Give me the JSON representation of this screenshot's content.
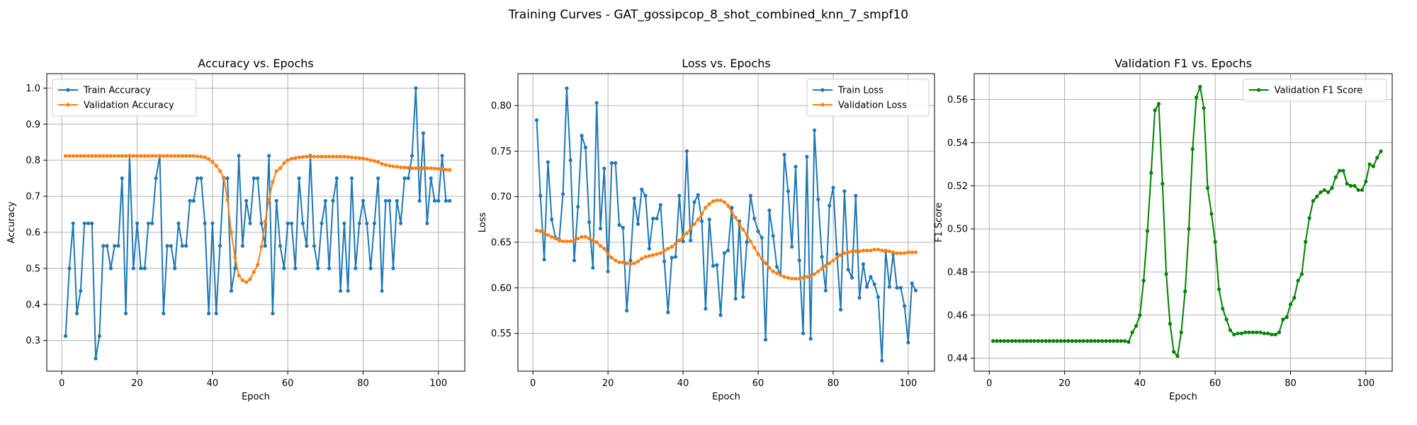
{
  "figure": {
    "suptitle": "Training Curves - GAT_gossipcop_8_shot_combined_knn_7_smpf10"
  },
  "colors": {
    "train": "#1f77b4",
    "validation": "#ff7f0e",
    "f1": "#008000"
  },
  "chart_data": [
    {
      "type": "line",
      "title": "Accuracy vs. Epochs",
      "xlabel": "Epoch",
      "ylabel": "Accuracy",
      "xlim": [
        -4,
        107
      ],
      "ylim": [
        0.215,
        1.04
      ],
      "xticks": [
        0,
        20,
        40,
        60,
        80,
        100
      ],
      "yticks": [
        0.3,
        0.4,
        0.5,
        0.6,
        0.7,
        0.8,
        0.9,
        1.0
      ],
      "ytick_labels": [
        "0.3",
        "0.4",
        "0.5",
        "0.6",
        "0.7",
        "0.8",
        "0.9",
        "1.0"
      ],
      "grid": true,
      "legend_position": "top-left",
      "x_start": 1,
      "series": [
        {
          "name": "Train Accuracy",
          "color": "#1f77b4",
          "values": [
            0.3125,
            0.5,
            0.625,
            0.375,
            0.4375,
            0.625,
            0.625,
            0.625,
            0.25,
            0.3125,
            0.5625,
            0.5625,
            0.5,
            0.5625,
            0.5625,
            0.75,
            0.375,
            0.8125,
            0.5,
            0.625,
            0.5,
            0.5,
            0.625,
            0.625,
            0.75,
            0.8125,
            0.375,
            0.5625,
            0.5625,
            0.5,
            0.625,
            0.5625,
            0.5625,
            0.6875,
            0.6875,
            0.75,
            0.75,
            0.625,
            0.375,
            0.625,
            0.375,
            0.5625,
            0.75,
            0.75,
            0.4375,
            0.5,
            0.8125,
            0.5625,
            0.6875,
            0.625,
            0.75,
            0.75,
            0.625,
            0.5625,
            0.8125,
            0.375,
            0.6875,
            0.5625,
            0.5,
            0.625,
            0.625,
            0.5,
            0.75,
            0.625,
            0.5625,
            0.8125,
            0.5625,
            0.5,
            0.625,
            0.6875,
            0.5,
            0.6875,
            0.75,
            0.4375,
            0.625,
            0.4375,
            0.75,
            0.5,
            0.625,
            0.6875,
            0.625,
            0.5,
            0.625,
            0.75,
            0.4375,
            0.6875,
            0.6875,
            0.5,
            0.6875,
            0.625,
            0.75,
            0.75,
            0.8125,
            1.0,
            0.6875,
            0.875,
            0.625,
            0.75,
            0.6875,
            0.6875,
            0.8125,
            0.6875,
            0.6875
          ]
        },
        {
          "name": "Validation Accuracy",
          "color": "#ff7f0e",
          "values": [
            0.812,
            0.812,
            0.812,
            0.812,
            0.812,
            0.812,
            0.812,
            0.812,
            0.812,
            0.812,
            0.812,
            0.812,
            0.812,
            0.812,
            0.812,
            0.812,
            0.812,
            0.812,
            0.812,
            0.812,
            0.812,
            0.812,
            0.812,
            0.812,
            0.812,
            0.812,
            0.812,
            0.812,
            0.812,
            0.812,
            0.812,
            0.812,
            0.812,
            0.812,
            0.812,
            0.811,
            0.81,
            0.808,
            0.803,
            0.795,
            0.785,
            0.77,
            0.752,
            0.69,
            0.6,
            0.53,
            0.48,
            0.467,
            0.462,
            0.47,
            0.49,
            0.51,
            0.56,
            0.63,
            0.69,
            0.74,
            0.77,
            0.778,
            0.792,
            0.8,
            0.804,
            0.806,
            0.808,
            0.809,
            0.81,
            0.81,
            0.81,
            0.81,
            0.81,
            0.81,
            0.81,
            0.81,
            0.81,
            0.81,
            0.81,
            0.809,
            0.808,
            0.807,
            0.806,
            0.805,
            0.803,
            0.8,
            0.798,
            0.795,
            0.79,
            0.787,
            0.785,
            0.783,
            0.782,
            0.78,
            0.78,
            0.779,
            0.778,
            0.778,
            0.778,
            0.778,
            0.778,
            0.778,
            0.777,
            0.776,
            0.775,
            0.774,
            0.773
          ]
        }
      ]
    },
    {
      "type": "line",
      "title": "Loss vs. Epochs",
      "xlabel": "Epoch",
      "ylabel": "Loss",
      "xlim": [
        -4,
        107
      ],
      "ylim": [
        0.5085,
        0.835
      ],
      "xticks": [
        0,
        20,
        40,
        60,
        80,
        100
      ],
      "yticks": [
        0.55,
        0.6,
        0.65,
        0.7,
        0.75,
        0.8
      ],
      "ytick_labels": [
        "0.55",
        "0.60",
        "0.65",
        "0.70",
        "0.75",
        "0.80"
      ],
      "grid": true,
      "legend_position": "top-right",
      "x_start": 1,
      "series": [
        {
          "name": "Train Loss",
          "color": "#1f77b4",
          "values": [
            0.784,
            0.701,
            0.631,
            0.738,
            0.675,
            0.655,
            0.653,
            0.703,
            0.819,
            0.74,
            0.63,
            0.689,
            0.767,
            0.754,
            0.672,
            0.622,
            0.803,
            0.665,
            0.731,
            0.618,
            0.737,
            0.737,
            0.669,
            0.666,
            0.575,
            0.63,
            0.698,
            0.67,
            0.708,
            0.701,
            0.643,
            0.676,
            0.676,
            0.691,
            0.629,
            0.573,
            0.633,
            0.634,
            0.701,
            0.651,
            0.75,
            0.652,
            0.694,
            0.702,
            0.673,
            0.577,
            0.675,
            0.624,
            0.625,
            0.57,
            0.638,
            0.641,
            0.688,
            0.588,
            0.673,
            0.59,
            0.65,
            0.701,
            0.676,
            0.662,
            0.655,
            0.543,
            0.685,
            0.657,
            0.623,
            0.614,
            0.746,
            0.706,
            0.645,
            0.733,
            0.63,
            0.55,
            0.744,
            0.544,
            0.773,
            0.697,
            0.634,
            0.597,
            0.69,
            0.71,
            0.637,
            0.576,
            0.706,
            0.62,
            0.611,
            0.701,
            0.589,
            0.626,
            0.601,
            0.612,
            0.604,
            0.59,
            0.52,
            0.64,
            0.601,
            0.637,
            0.6,
            0.6,
            0.58,
            0.54,
            0.605,
            0.597
          ]
        },
        {
          "name": "Validation Loss",
          "color": "#ff7f0e",
          "values": [
            0.663,
            0.662,
            0.66,
            0.658,
            0.656,
            0.654,
            0.652,
            0.651,
            0.651,
            0.651,
            0.652,
            0.654,
            0.656,
            0.656,
            0.654,
            0.652,
            0.65,
            0.646,
            0.643,
            0.637,
            0.633,
            0.63,
            0.628,
            0.628,
            0.627,
            0.626,
            0.627,
            0.629,
            0.632,
            0.634,
            0.635,
            0.636,
            0.637,
            0.638,
            0.641,
            0.643,
            0.645,
            0.648,
            0.652,
            0.656,
            0.66,
            0.665,
            0.67,
            0.675,
            0.681,
            0.688,
            0.692,
            0.695,
            0.696,
            0.696,
            0.694,
            0.69,
            0.683,
            0.677,
            0.67,
            0.664,
            0.658,
            0.651,
            0.644,
            0.637,
            0.632,
            0.627,
            0.622,
            0.618,
            0.616,
            0.614,
            0.612,
            0.611,
            0.61,
            0.61,
            0.61,
            0.611,
            0.612,
            0.613,
            0.615,
            0.618,
            0.621,
            0.624,
            0.627,
            0.63,
            0.633,
            0.636,
            0.638,
            0.639,
            0.64,
            0.64,
            0.64,
            0.641,
            0.641,
            0.641,
            0.642,
            0.642,
            0.641,
            0.641,
            0.64,
            0.639,
            0.638,
            0.638,
            0.638,
            0.639,
            0.639,
            0.639
          ]
        }
      ]
    },
    {
      "type": "line",
      "title": "Validation F1 vs. Epochs",
      "xlabel": "Epoch",
      "ylabel": "F1 Score",
      "xlim": [
        -4,
        107
      ],
      "ylim": [
        0.434,
        0.572
      ],
      "xticks": [
        0,
        20,
        40,
        60,
        80,
        100
      ],
      "yticks": [
        0.44,
        0.46,
        0.48,
        0.5,
        0.52,
        0.54,
        0.56
      ],
      "ytick_labels": [
        "0.44",
        "0.46",
        "0.48",
        "0.50",
        "0.52",
        "0.54",
        "0.56"
      ],
      "grid": true,
      "legend_position": "top-right",
      "x_start": 1,
      "series": [
        {
          "name": "Validation F1 Score",
          "color": "#008000",
          "values": [
            0.448,
            0.448,
            0.448,
            0.448,
            0.448,
            0.448,
            0.448,
            0.448,
            0.448,
            0.448,
            0.448,
            0.448,
            0.448,
            0.448,
            0.448,
            0.448,
            0.448,
            0.448,
            0.448,
            0.448,
            0.448,
            0.448,
            0.448,
            0.448,
            0.448,
            0.448,
            0.448,
            0.448,
            0.448,
            0.448,
            0.448,
            0.448,
            0.448,
            0.448,
            0.448,
            0.448,
            0.4475,
            0.452,
            0.455,
            0.46,
            0.476,
            0.499,
            0.526,
            0.555,
            0.558,
            0.521,
            0.479,
            0.456,
            0.443,
            0.441,
            0.452,
            0.471,
            0.5,
            0.537,
            0.561,
            0.566,
            0.556,
            0.519,
            0.507,
            0.494,
            0.472,
            0.463,
            0.458,
            0.453,
            0.451,
            0.4515,
            0.4515,
            0.452,
            0.452,
            0.452,
            0.452,
            0.452,
            0.4515,
            0.4515,
            0.451,
            0.451,
            0.452,
            0.458,
            0.459,
            0.465,
            0.468,
            0.476,
            0.479,
            0.494,
            0.505,
            0.513,
            0.515,
            0.517,
            0.518,
            0.517,
            0.519,
            0.524,
            0.527,
            0.527,
            0.521,
            0.52,
            0.52,
            0.518,
            0.518,
            0.522,
            0.53,
            0.529,
            0.533,
            0.536
          ]
        }
      ]
    }
  ]
}
